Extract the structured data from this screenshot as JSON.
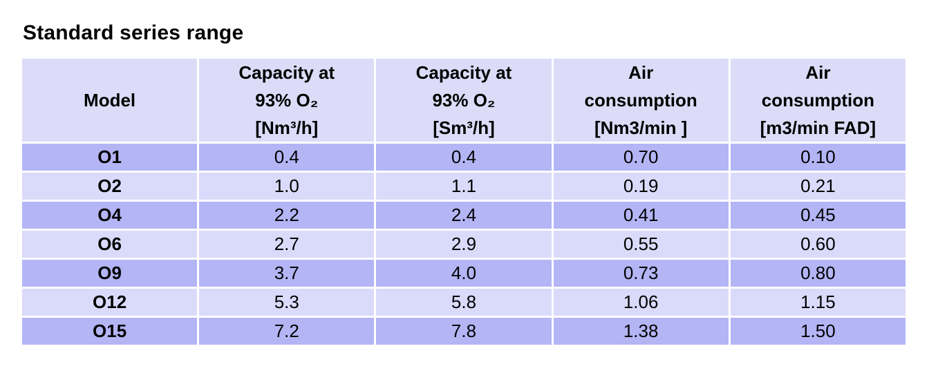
{
  "page": {
    "title": "Standard series range"
  },
  "table": {
    "headers": [
      {
        "lines": [
          "Model"
        ]
      },
      {
        "lines": [
          "Capacity at",
          "93% O₂",
          "[Nm³/h]"
        ]
      },
      {
        "lines": [
          "Capacity at",
          "93% O₂",
          "[Sm³/h]"
        ]
      },
      {
        "lines": [
          "Air",
          "consumption",
          "[Nm3/min ]"
        ]
      },
      {
        "lines": [
          "Air",
          "consumption",
          "[m3/min FAD]"
        ]
      }
    ],
    "rows": [
      [
        "O1",
        "0.4",
        "0.4",
        "0.70",
        "0.10"
      ],
      [
        "O2",
        "1.0",
        "1.1",
        "0.19",
        "0.21"
      ],
      [
        "O4",
        "2.2",
        "2.4",
        "0.41",
        "0.45"
      ],
      [
        "O6",
        "2.7",
        "2.9",
        "0.55",
        "0.60"
      ],
      [
        "O9",
        "3.7",
        "4.0",
        "0.73",
        "0.80"
      ],
      [
        "O12",
        "5.3",
        "5.8",
        "1.06",
        "1.15"
      ],
      [
        "O15",
        "7.2",
        "7.8",
        "1.38",
        "1.50"
      ]
    ]
  },
  "colors": {
    "header_bg": "#dcdcf8",
    "row_dark": "#b3b5f5",
    "row_light": "#dadafb"
  }
}
